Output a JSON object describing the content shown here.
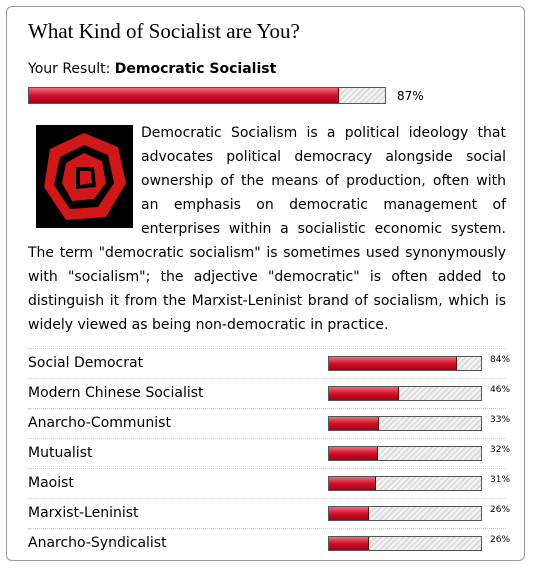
{
  "header": {
    "title": "What Kind of Socialist are You?"
  },
  "result": {
    "prefix": "Your Result:",
    "name": "Democratic Socialist",
    "value": 87,
    "label": "87%"
  },
  "description": "Democratic Socialism is a political ideology that advocates political democracy alongside social ownership of the means of production, often with an emphasis on democratic management of enterprises within a socialistic economic system. The term \"democratic socialism\" is sometimes used synonymously with \"socialism\"; the adjective \"democratic\" is often added to distinguish it from the Marxist-Leninist brand of socialism, which is widely viewed as being non-democratic in practice.",
  "others": [
    {
      "name": "Social Democrat",
      "value": 84,
      "label": "84%"
    },
    {
      "name": "Modern Chinese Socialist",
      "value": 46,
      "label": "46%"
    },
    {
      "name": "Anarcho-Communist",
      "value": 33,
      "label": "33%"
    },
    {
      "name": "Mutualist",
      "value": 32,
      "label": "32%"
    },
    {
      "name": "Maoist",
      "value": 31,
      "label": "31%"
    },
    {
      "name": "Marxist-Leninist",
      "value": 26,
      "label": "26%"
    },
    {
      "name": "Anarcho-Syndicalist",
      "value": 26,
      "label": "26%"
    }
  ]
}
